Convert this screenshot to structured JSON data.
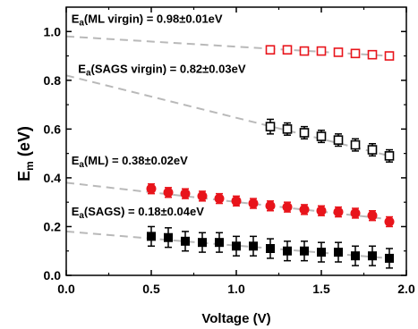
{
  "chart_data": {
    "type": "scatter",
    "xlabel": "Voltage (V)",
    "ylabel": {
      "main": "E",
      "sub": "m",
      "unit": " (eV)"
    },
    "xlim": [
      0.0,
      2.0
    ],
    "ylim": [
      0.0,
      1.1
    ],
    "xticks": [
      "0.0",
      "0.5",
      "1.0",
      "1.5",
      "2.0"
    ],
    "yticks": [
      "0.0",
      "0.2",
      "0.4",
      "0.6",
      "0.8",
      "1.0"
    ],
    "grid": false,
    "series": [
      {
        "key": "ml-virgin",
        "marker": "open-square",
        "color": "#e8141b",
        "x": [
          1.2,
          1.3,
          1.4,
          1.5,
          1.6,
          1.7,
          1.8,
          1.9
        ],
        "y": [
          0.925,
          0.925,
          0.92,
          0.92,
          0.915,
          0.91,
          0.905,
          0.9
        ],
        "err": [
          0.01,
          0.01,
          0.01,
          0.01,
          0.01,
          0.01,
          0.01,
          0.01
        ],
        "fit": {
          "intercept": 0.98,
          "x1": 1.9,
          "y1": 0.9
        }
      },
      {
        "key": "sags-virgin",
        "marker": "open-square",
        "color": "#000000",
        "x": [
          1.2,
          1.3,
          1.4,
          1.5,
          1.6,
          1.7,
          1.8,
          1.9
        ],
        "y": [
          0.61,
          0.6,
          0.585,
          0.57,
          0.555,
          0.535,
          0.515,
          0.49
        ],
        "err": [
          0.03,
          0.025,
          0.025,
          0.025,
          0.025,
          0.025,
          0.025,
          0.025
        ],
        "fit": {
          "intercept": 0.82,
          "x1": 1.9,
          "y1": 0.49
        }
      },
      {
        "key": "ml",
        "marker": "filled-circle",
        "color": "#e8141b",
        "x": [
          0.5,
          0.6,
          0.7,
          0.8,
          0.9,
          1.0,
          1.1,
          1.2,
          1.3,
          1.4,
          1.5,
          1.6,
          1.7,
          1.8,
          1.9
        ],
        "y": [
          0.355,
          0.34,
          0.335,
          0.325,
          0.315,
          0.305,
          0.295,
          0.285,
          0.28,
          0.27,
          0.265,
          0.26,
          0.255,
          0.245,
          0.22
        ],
        "err": [
          0.02,
          0.02,
          0.02,
          0.02,
          0.02,
          0.02,
          0.02,
          0.02,
          0.02,
          0.02,
          0.02,
          0.02,
          0.02,
          0.02,
          0.02
        ],
        "fit": {
          "intercept": 0.38,
          "x1": 1.9,
          "y1": 0.23
        }
      },
      {
        "key": "sags",
        "marker": "filled-square",
        "color": "#000000",
        "x": [
          0.5,
          0.6,
          0.7,
          0.8,
          0.9,
          1.0,
          1.1,
          1.2,
          1.3,
          1.4,
          1.5,
          1.6,
          1.7,
          1.8,
          1.9
        ],
        "y": [
          0.16,
          0.155,
          0.14,
          0.135,
          0.135,
          0.12,
          0.12,
          0.11,
          0.1,
          0.1,
          0.095,
          0.095,
          0.08,
          0.08,
          0.07
        ],
        "err": [
          0.04,
          0.04,
          0.04,
          0.04,
          0.04,
          0.04,
          0.04,
          0.04,
          0.04,
          0.04,
          0.04,
          0.04,
          0.04,
          0.04,
          0.04
        ],
        "fit": {
          "intercept": 0.18,
          "x1": 1.9,
          "y1": 0.07
        }
      }
    ],
    "annotations": [
      {
        "key": "ml-virgin",
        "prefix": "E",
        "sub": "a",
        "text": "(ML virgin) = 0.98±0.01eV",
        "x": 0.03,
        "y": 1.035
      },
      {
        "key": "sags-virgin",
        "prefix": "E",
        "sub": "a",
        "text": "(SAGS virgin) = 0.82±0.03eV",
        "x": 0.07,
        "y": 0.83
      },
      {
        "key": "ml",
        "prefix": "E",
        "sub": "a",
        "text": "(ML) = 0.38±0.02eV",
        "x": 0.03,
        "y": 0.455
      },
      {
        "key": "sags",
        "prefix": "E",
        "sub": "a",
        "text": "(SAGS) = 0.18±0.04eV",
        "x": 0.03,
        "y": 0.245
      }
    ],
    "fit_line_color": "#b9b9b9"
  }
}
